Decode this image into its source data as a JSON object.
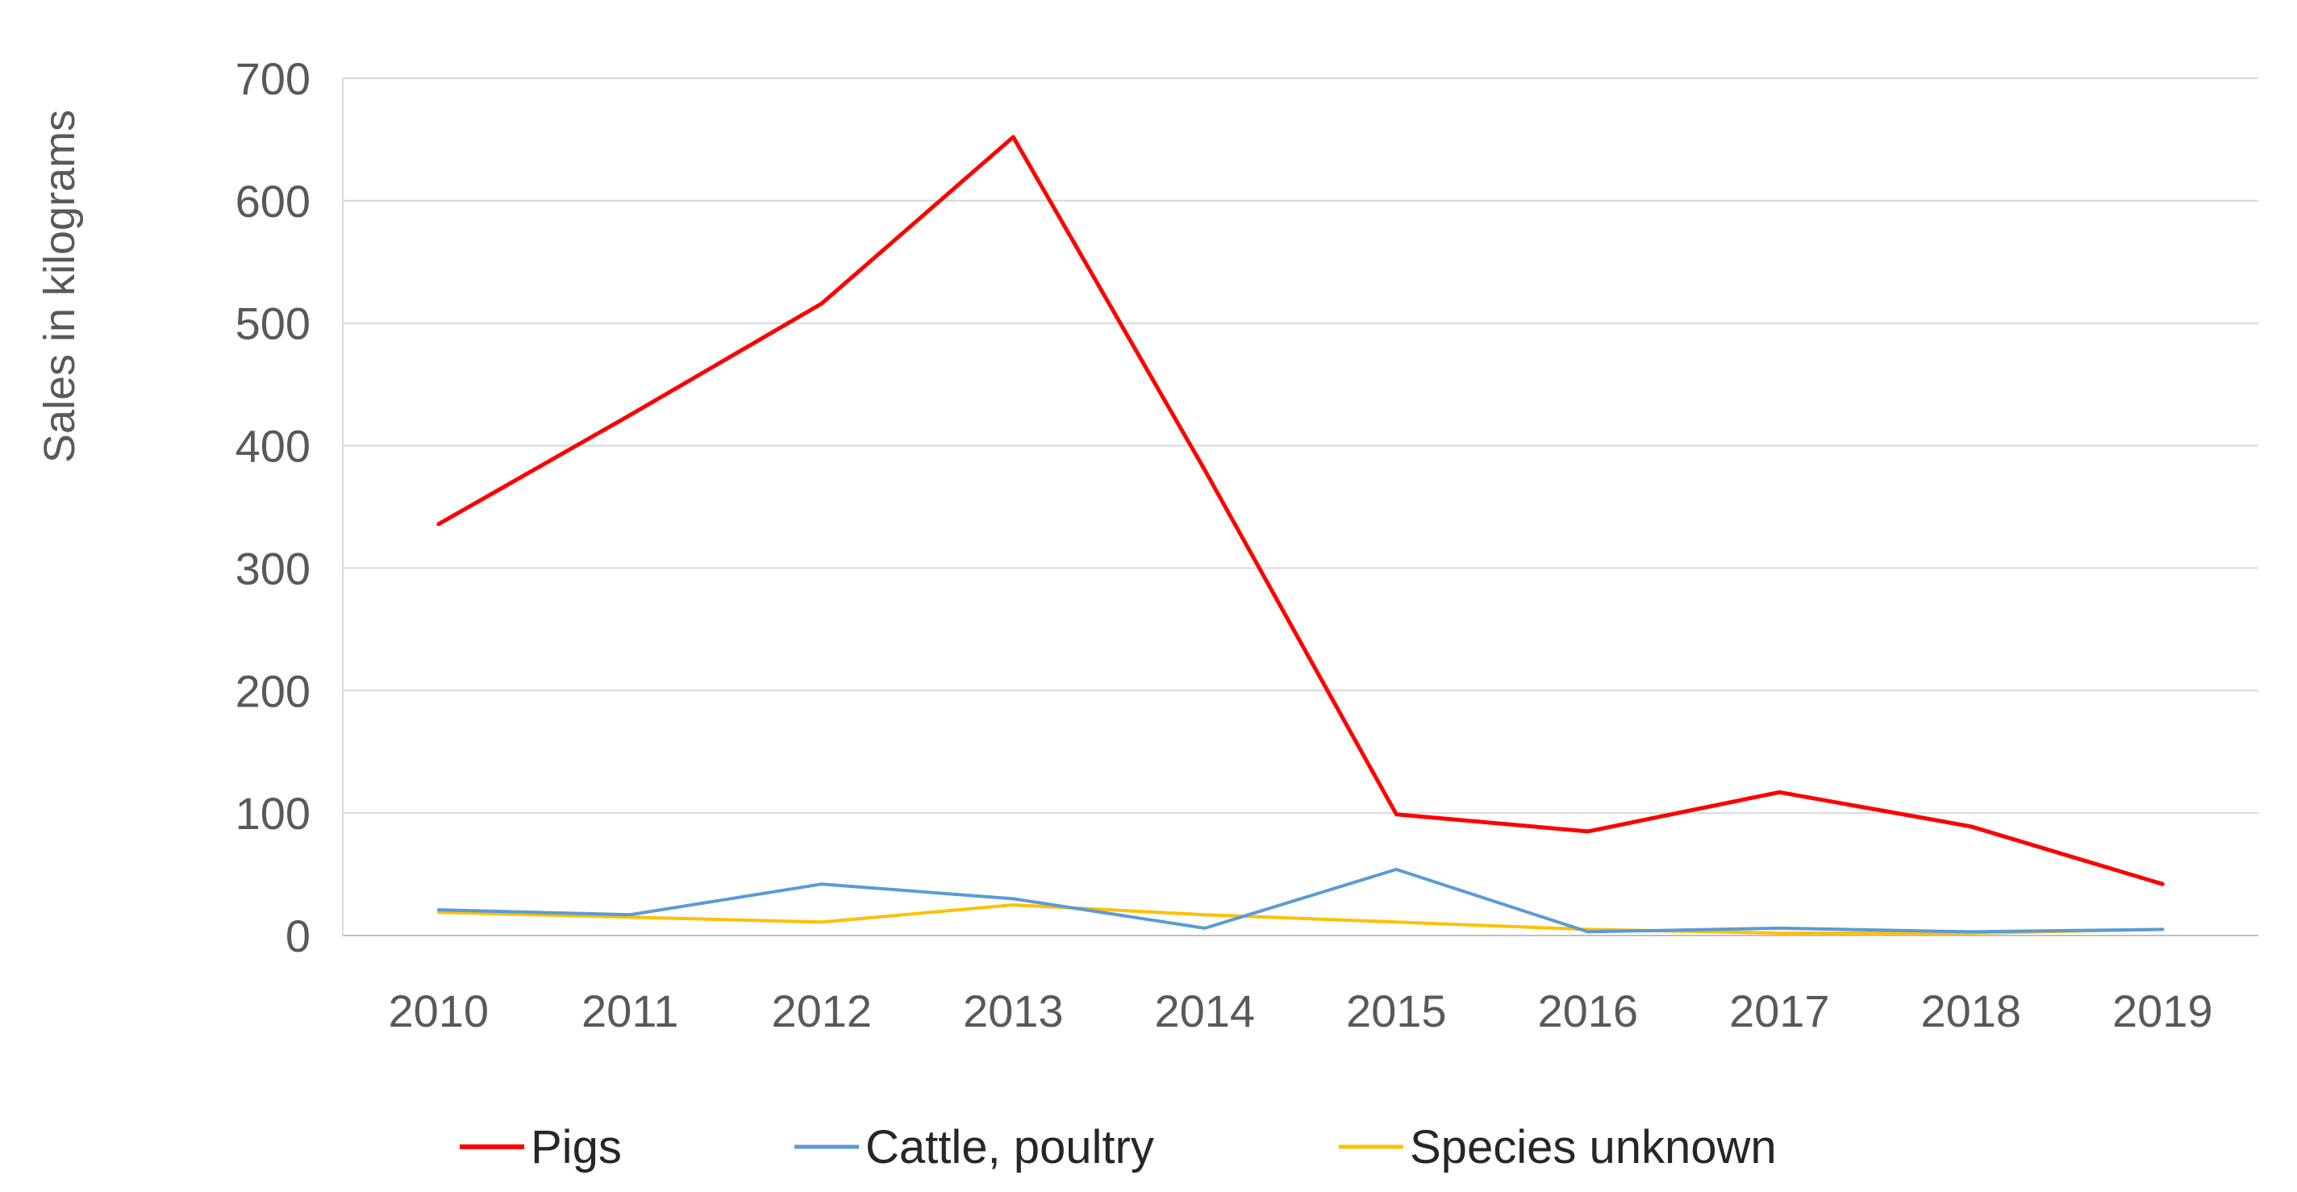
{
  "chart_data": {
    "type": "line",
    "title": "",
    "xlabel": "",
    "ylabel": "Sales in kilograms",
    "categories": [
      "2010",
      "2011",
      "2012",
      "2013",
      "2014",
      "2015",
      "2016",
      "2017",
      "2018",
      "2019"
    ],
    "ylim": [
      0,
      700
    ],
    "yticks": [
      0,
      100,
      200,
      300,
      400,
      500,
      600,
      700
    ],
    "grid": true,
    "legend_position": "bottom",
    "series": [
      {
        "name": "Pigs",
        "color": "#ff0000",
        "values": [
          336,
          425,
          516,
          652,
          380,
          99,
          85,
          117,
          89,
          42
        ]
      },
      {
        "name": "Cattle, poultry",
        "color": "#5b9bd5",
        "values": [
          21,
          17,
          42,
          30,
          6,
          54,
          3,
          6,
          3,
          5
        ]
      },
      {
        "name": "Species unknown",
        "color": "#ffc000",
        "values": [
          19,
          15,
          11,
          25,
          17,
          11,
          5,
          2,
          2,
          5
        ]
      }
    ]
  }
}
